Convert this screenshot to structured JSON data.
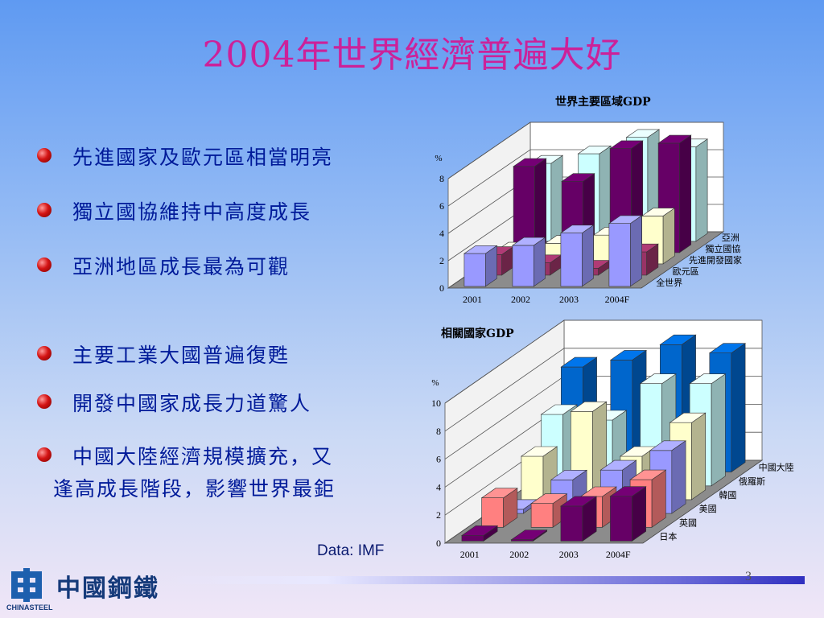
{
  "title": "2004年世界經濟普遍大好",
  "bullets": [
    "先進國家及歐元區相當明亮",
    "獨立國協維持中高度成長",
    "亞洲地區成長最為可觀",
    "主要工業大國普遍復甦",
    "開發中國家成長力道驚人",
    "中國大陸經濟規模擴充，又",
    "逢高成長階段，影響世界最鉅"
  ],
  "source": "Data: IMF",
  "page_number": "3",
  "logo": {
    "chinese": "中國鋼鐵",
    "english": "CHINASTEEL"
  },
  "chart_data": [
    {
      "type": "bar",
      "title": "世界主要區域GDP",
      "ylabel": "%",
      "ylim": [
        0,
        8
      ],
      "yticks": [
        0,
        2,
        4,
        6,
        8
      ],
      "categories": [
        "2001",
        "2002",
        "2003",
        "2004F"
      ],
      "series": [
        {
          "name": "全世界",
          "color": "#9999ff",
          "values": [
            2.4,
            3.0,
            3.9,
            4.6
          ]
        },
        {
          "name": "歐元區",
          "color": "#993366",
          "values": [
            1.5,
            0.9,
            0.5,
            1.7
          ]
        },
        {
          "name": "先進開發國家",
          "color": "#ffffcc",
          "values": [
            1.0,
            1.5,
            2.1,
            3.5
          ]
        },
        {
          "name": "獨立國協",
          "color": "#660066",
          "values": [
            6.3,
            5.2,
            7.6,
            8.0
          ]
        },
        {
          "name": "亞洲",
          "color": "#ccffff",
          "values": [
            5.7,
            6.4,
            7.6,
            6.9
          ]
        }
      ]
    },
    {
      "type": "bar",
      "title": "相關國家GDP",
      "ylabel": "%",
      "ylim": [
        0,
        10
      ],
      "yticks": [
        0,
        2,
        4,
        6,
        8,
        10
      ],
      "categories": [
        "2001",
        "2002",
        "2003",
        "2004F"
      ],
      "series": [
        {
          "name": "日本",
          "color": "#660066",
          "values": [
            0.4,
            0.1,
            2.5,
            3.2
          ]
        },
        {
          "name": "英國",
          "color": "#ff8080",
          "values": [
            2.1,
            1.7,
            2.2,
            3.4
          ]
        },
        {
          "name": "美國",
          "color": "#9999ff",
          "values": [
            0.3,
            2.4,
            3.1,
            4.5
          ]
        },
        {
          "name": "韓國",
          "color": "#ffffcc",
          "values": [
            3.1,
            6.3,
            3.1,
            5.5
          ]
        },
        {
          "name": "俄羅斯",
          "color": "#ccffff",
          "values": [
            5.1,
            4.7,
            7.3,
            7.3
          ]
        },
        {
          "name": "中國大陸",
          "color": "#0066cc",
          "values": [
            7.5,
            8.0,
            9.1,
            8.5
          ]
        }
      ]
    }
  ]
}
